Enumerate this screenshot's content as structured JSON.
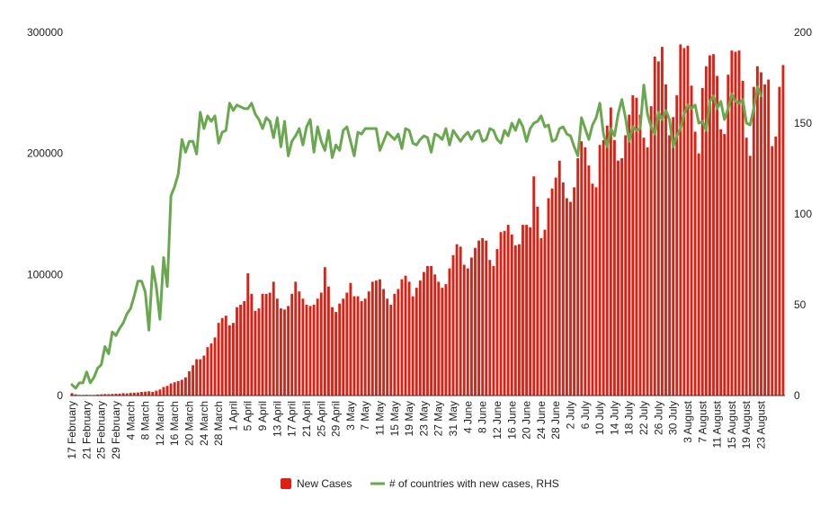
{
  "chart_data": {
    "type": "bar",
    "colors": {
      "bar": "#e01f13",
      "line": "#6aa84f",
      "axis": "#333333"
    },
    "grid": false,
    "legend": "bottom",
    "left_axis": {
      "ylim": [
        0,
        300000
      ],
      "ticks": [
        "0",
        "100000",
        "200000",
        "300000"
      ]
    },
    "right_axis": {
      "ylim": [
        0,
        200
      ],
      "ticks": [
        "0",
        "50",
        "100",
        "150",
        "200"
      ]
    },
    "x_labels": [
      "17 February",
      "21 February",
      "25 February",
      "29 February",
      "4 March",
      "8 March",
      "12 March",
      "16 March",
      "20 March",
      "24 March",
      "28 March",
      "1 April",
      "5 April",
      "9 April",
      "13 April",
      "17 April",
      "21 April",
      "25 April",
      "29 April",
      "3 May",
      "7 May",
      "11 May",
      "15 May",
      "19 May",
      "23 May",
      "27 May",
      "31 May",
      "4 June",
      "8 June",
      "12 June",
      "16 June",
      "20 June",
      "24 June",
      "28 June",
      "2 July",
      "6 July",
      "10 July",
      "14 July",
      "18 July",
      "22 July",
      "26 July",
      "30 July",
      "3 August",
      "7 August",
      "11 August",
      "15 August",
      "19 August",
      "23 August"
    ],
    "series": [
      {
        "name": "New Cases",
        "kind": "bar",
        "axis": "left",
        "values": [
          2000,
          1000,
          500,
          500,
          600,
          500,
          500,
          800,
          1000,
          1200,
          1100,
          1300,
          1500,
          1500,
          2000,
          1800,
          2200,
          2300,
          2500,
          3000,
          3200,
          3500,
          3000,
          4000,
          5000,
          7000,
          8000,
          10000,
          11000,
          12000,
          13000,
          15000,
          20000,
          25000,
          30000,
          30000,
          33000,
          40000,
          43000,
          48000,
          60000,
          64000,
          66000,
          58000,
          60000,
          73000,
          75000,
          78000,
          101000,
          84000,
          70000,
          72000,
          84000,
          84000,
          85000,
          94000,
          80000,
          72000,
          71000,
          74000,
          84000,
          94000,
          86000,
          80000,
          75000,
          74000,
          75000,
          80000,
          85000,
          106000,
          90000,
          73000,
          69000,
          76000,
          80000,
          85000,
          93000,
          82000,
          82000,
          78000,
          80000,
          86000,
          94000,
          95000,
          96000,
          88000,
          80000,
          75000,
          84000,
          88000,
          96000,
          99000,
          94000,
          82000,
          89000,
          95000,
          102000,
          107000,
          107000,
          100000,
          94000,
          89000,
          92000,
          105000,
          116000,
          125000,
          123000,
          108000,
          105000,
          114000,
          122000,
          128000,
          130000,
          128000,
          112000,
          107000,
          121000,
          135000,
          136000,
          141000,
          133000,
          124000,
          125000,
          141000,
          141000,
          139000,
          181000,
          156000,
          130000,
          137000,
          163000,
          171000,
          180000,
          194000,
          176000,
          163000,
          160000,
          172000,
          196000,
          210000,
          205000,
          190000,
          175000,
          172000,
          207000,
          211000,
          223000,
          238000,
          211000,
          194000,
          196000,
          215000,
          232000,
          248000,
          246000,
          232000,
          213000,
          205000,
          239000,
          280000,
          276000,
          288000,
          257000,
          215000,
          230000,
          248000,
          290000,
          287000,
          289000,
          256000,
          218000,
          200000,
          254000,
          272000,
          281000,
          282000,
          264000,
          220000,
          216000,
          265000,
          285000,
          284000,
          285000,
          260000,
          213000,
          198000,
          255000,
          272000,
          267000,
          257000,
          261000,
          206000,
          214000,
          255000,
          273000
        ]
      },
      {
        "name": "# of countries with new cases, RHS",
        "kind": "line",
        "axis": "right",
        "values": [
          6,
          4,
          7,
          7,
          13,
          7,
          10,
          15,
          17,
          27,
          23,
          35,
          33,
          37,
          40,
          45,
          48,
          55,
          63,
          63,
          57,
          36,
          71,
          60,
          42,
          76,
          60,
          110,
          115,
          122,
          141,
          134,
          140,
          140,
          133,
          156,
          147,
          154,
          151,
          154,
          139,
          145,
          146,
          161,
          157,
          160,
          159,
          158,
          158,
          161,
          155,
          152,
          147,
          153,
          151,
          142,
          153,
          137,
          151,
          132,
          140,
          143,
          147,
          138,
          148,
          152,
          134,
          148,
          140,
          135,
          146,
          131,
          138,
          135,
          146,
          148,
          140,
          132,
          145,
          144,
          147,
          147,
          147,
          147,
          135,
          140,
          145,
          143,
          141,
          144,
          136,
          147,
          146,
          139,
          138,
          141,
          143,
          142,
          134,
          144,
          143,
          141,
          147,
          138,
          146,
          143,
          140,
          143,
          145,
          141,
          145,
          146,
          140,
          141,
          147,
          146,
          141,
          139,
          146,
          143,
          150,
          146,
          152,
          148,
          140,
          147,
          150,
          151,
          154,
          148,
          149,
          140,
          141,
          147,
          148,
          144,
          143,
          137,
          132,
          153,
          147,
          141,
          149,
          153,
          161,
          144,
          137,
          147,
          143,
          155,
          163,
          153,
          140,
          148,
          146,
          147,
          171,
          155,
          148,
          144,
          156,
          152,
          157,
          152,
          137,
          143,
          147,
          155,
          160,
          158,
          160,
          150,
          151,
          146,
          162,
          165,
          158,
          162,
          152,
          158,
          166,
          162,
          161,
          163,
          150,
          149,
          158,
          170,
          165
        ]
      }
    ]
  }
}
